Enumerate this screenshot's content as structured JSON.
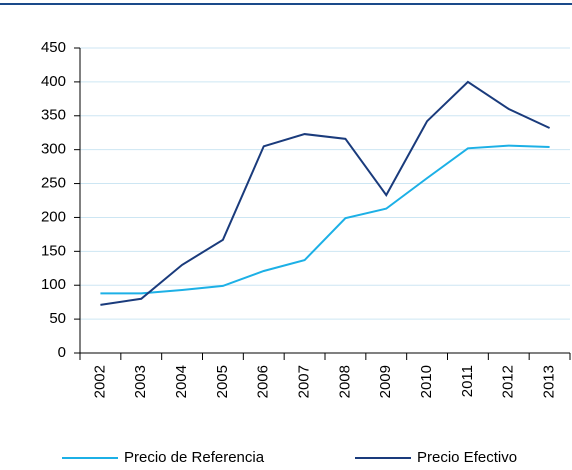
{
  "chart_data": {
    "type": "line",
    "categories": [
      "2002",
      "2003",
      "2004",
      "2005",
      "2006",
      "2007",
      "2008",
      "2009",
      "2010",
      "2011",
      "2012",
      "2013"
    ],
    "series": [
      {
        "name": "Precio de Referencia",
        "color": "#1cb0e6",
        "values": [
          88,
          88,
          93,
          99,
          121,
          137,
          199,
          213,
          258,
          302,
          306,
          304
        ]
      },
      {
        "name": "Precio Efectivo",
        "color": "#1a3b7c",
        "values": [
          71,
          80,
          130,
          167,
          305,
          323,
          316,
          233,
          342,
          400,
          360,
          332
        ]
      }
    ],
    "ylim": [
      0,
      450
    ],
    "yticks": [
      0,
      50,
      100,
      150,
      200,
      250,
      300,
      350,
      400,
      450
    ],
    "grid": true,
    "legend": "bottom"
  }
}
